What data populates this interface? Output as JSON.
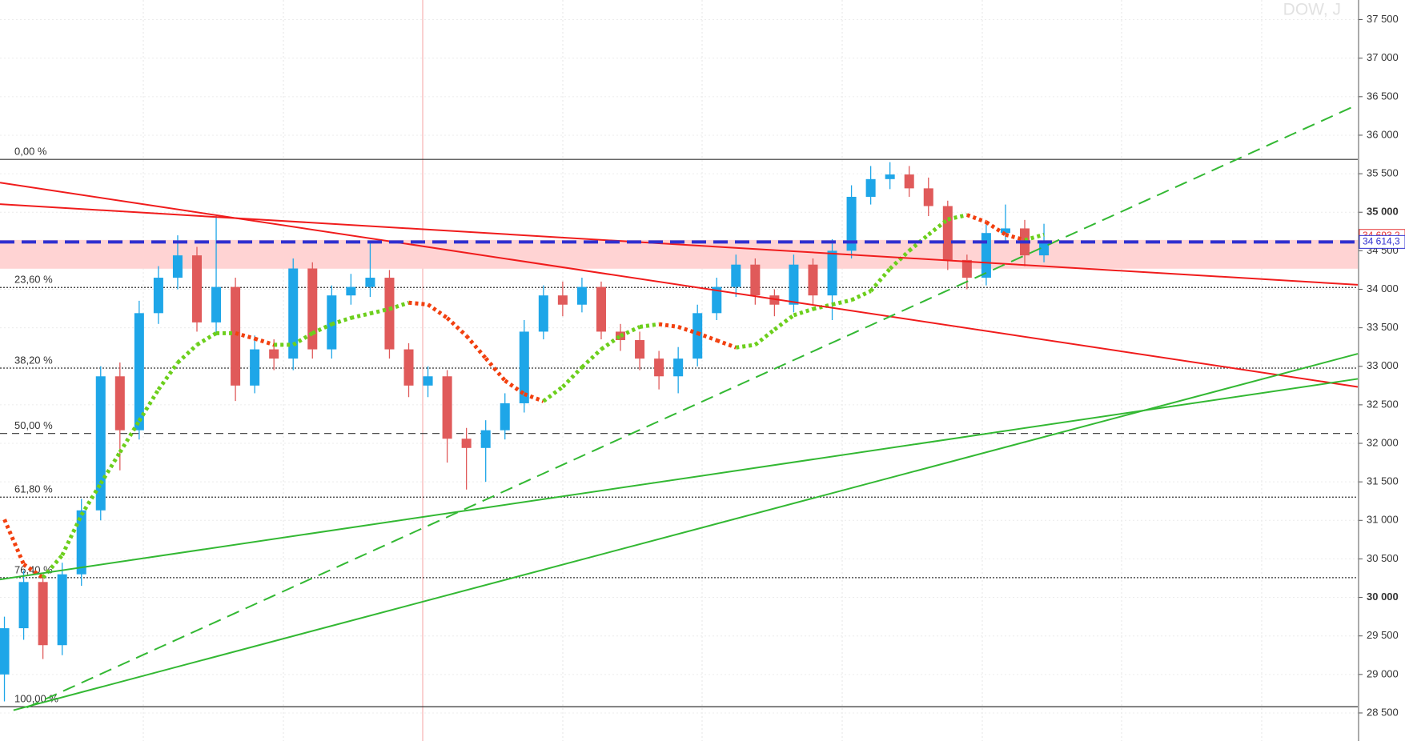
{
  "chart_data": {
    "type": "candlestick",
    "title": "DOW, J",
    "ylim": [
      28136,
      37755
    ],
    "xlim": [
      -0.23,
      70.3
    ],
    "yticks": [
      {
        "value": 28500,
        "label": "28 500"
      },
      {
        "value": 29000,
        "label": "29 000"
      },
      {
        "value": 29500,
        "label": "29 500"
      },
      {
        "value": 30000,
        "label": "30 000",
        "bold": true
      },
      {
        "value": 30500,
        "label": "30 500"
      },
      {
        "value": 31000,
        "label": "31 000"
      },
      {
        "value": 31500,
        "label": "31 500"
      },
      {
        "value": 32000,
        "label": "32 000"
      },
      {
        "value": 32500,
        "label": "32 500"
      },
      {
        "value": 33000,
        "label": "33 000"
      },
      {
        "value": 33500,
        "label": "33 500"
      },
      {
        "value": 34000,
        "label": "34 000"
      },
      {
        "value": 34500,
        "label": "34 500"
      },
      {
        "value": 35000,
        "label": "35 000",
        "bold": true
      },
      {
        "value": 35500,
        "label": "35 500"
      },
      {
        "value": 36000,
        "label": "36 000"
      },
      {
        "value": 36500,
        "label": "36 500"
      },
      {
        "value": 37000,
        "label": "37 000"
      },
      {
        "value": 37500,
        "label": "37 500"
      }
    ],
    "up_color": "#1ea6e8",
    "down_color": "#e05a5a",
    "open": [
      29000,
      29600,
      30200,
      29380,
      30300,
      31130,
      32870,
      32170,
      33690,
      34150,
      34440,
      33570,
      34030,
      32750,
      33220,
      33100,
      34270,
      33220,
      33920,
      34030,
      34150,
      33220,
      32750,
      32870,
      32060,
      31940,
      32170,
      32520,
      33450,
      33920,
      33800,
      34030,
      33450,
      33340,
      33100,
      32870,
      33100,
      33690,
      34030,
      34320,
      33920,
      33800,
      34320,
      33920,
      34500,
      35200,
      35430,
      35490,
      35310,
      35080,
      34380,
      34150,
      34730,
      34790,
      34440
    ],
    "high": [
      29750,
      30350,
      30300,
      30450,
      31280,
      33000,
      33050,
      33850,
      34300,
      34700,
      34550,
      34950,
      34150,
      33400,
      33350,
      34400,
      34350,
      34050,
      34200,
      34600,
      34250,
      33300,
      33000,
      32950,
      32200,
      32300,
      32650,
      33600,
      34050,
      34100,
      34150,
      34100,
      33550,
      33450,
      33200,
      33250,
      33800,
      34150,
      34450,
      34400,
      34000,
      34450,
      34400,
      34650,
      35350,
      35600,
      35650,
      35600,
      35450,
      35150,
      34450,
      34850,
      35100,
      34900,
      34850
    ],
    "low": [
      28650,
      29450,
      29200,
      29250,
      30150,
      31000,
      31650,
      32050,
      33550,
      34000,
      33450,
      33400,
      32550,
      32650,
      32950,
      32950,
      33100,
      33100,
      33800,
      33900,
      33100,
      32600,
      32600,
      31750,
      31400,
      31500,
      32050,
      32400,
      33350,
      33650,
      33700,
      33350,
      33200,
      32950,
      32700,
      32650,
      33000,
      33600,
      33900,
      33800,
      33650,
      33700,
      33800,
      33600,
      34400,
      35100,
      35300,
      35200,
      34950,
      34250,
      34000,
      34050,
      34600,
      34300,
      34350
    ],
    "close": [
      29600,
      30200,
      29380,
      30300,
      31130,
      32870,
      32170,
      33690,
      34150,
      34440,
      33570,
      34030,
      32750,
      33220,
      33100,
      34270,
      33220,
      33920,
      34030,
      34150,
      33220,
      32750,
      32870,
      32060,
      31940,
      32170,
      32520,
      33450,
      33920,
      33800,
      34030,
      33450,
      33340,
      33100,
      32870,
      33100,
      33690,
      34030,
      34320,
      33920,
      33800,
      34320,
      33920,
      34500,
      35200,
      35430,
      35490,
      35310,
      35080,
      34380,
      34150,
      34730,
      34790,
      34440,
      34610
    ],
    "moving_average": {
      "up_color": "#6ccf1c",
      "down_color": "#f2400f",
      "values": [
        31012,
        30430,
        30256,
        30547,
        31070,
        31477,
        31884,
        32291,
        32698,
        33047,
        33279,
        33430,
        33430,
        33360,
        33279,
        33279,
        33430,
        33547,
        33628,
        33686,
        33744,
        33826,
        33802,
        33628,
        33395,
        33105,
        32814,
        32640,
        32547,
        32733,
        32988,
        33221,
        33395,
        33512,
        33547,
        33512,
        33430,
        33337,
        33244,
        33279,
        33477,
        33663,
        33744,
        33802,
        33860,
        33977,
        34267,
        34500,
        34709,
        34907,
        34965,
        34872,
        34709,
        34639,
        34709
      ]
    },
    "fibonacci": [
      {
        "label": "0,00 %",
        "price": 35686,
        "style": "solid"
      },
      {
        "label": "23,60 %",
        "price": 34023,
        "style": "dotted"
      },
      {
        "label": "38,20 %",
        "price": 32977,
        "style": "dotted"
      },
      {
        "label": "50,00 %",
        "price": 32128,
        "style": "dashed"
      },
      {
        "label": "61,80 %",
        "price": 31302,
        "style": "dotted"
      },
      {
        "label": "76,40 %",
        "price": 30256,
        "style": "dotted"
      },
      {
        "label": "100,00 %",
        "price": 28581,
        "style": "solid"
      }
    ],
    "zone": {
      "from": 34267,
      "to": 34640,
      "color": "#ffd3d3"
    },
    "trendlines": [
      {
        "color": "#f01c1c",
        "dashed": false,
        "start": [
          -0.23,
          35384
        ],
        "end": [
          70.3,
          32733
        ]
      },
      {
        "color": "#f01c1c",
        "dashed": false,
        "start": [
          -0.23,
          35105
        ],
        "end": [
          70.3,
          34058
        ]
      },
      {
        "color": "#33b833",
        "dashed": false,
        "start": [
          -0.23,
          30233
        ],
        "end": [
          70.3,
          32837
        ]
      },
      {
        "color": "#33b833",
        "dashed": false,
        "start": [
          0.47,
          28535
        ],
        "end": [
          70.3,
          33163
        ]
      },
      {
        "color": "#33b833",
        "dashed": true,
        "start": [
          1.16,
          28570
        ],
        "end": [
          69.97,
          36360
        ]
      }
    ],
    "price_tags": [
      {
        "value": 34693.2,
        "label": "34 693,2",
        "color": "#e53333",
        "line": false
      },
      {
        "value": 34614.3,
        "label": "34 614,3",
        "color": "#2f2fd0",
        "line": true
      }
    ]
  }
}
